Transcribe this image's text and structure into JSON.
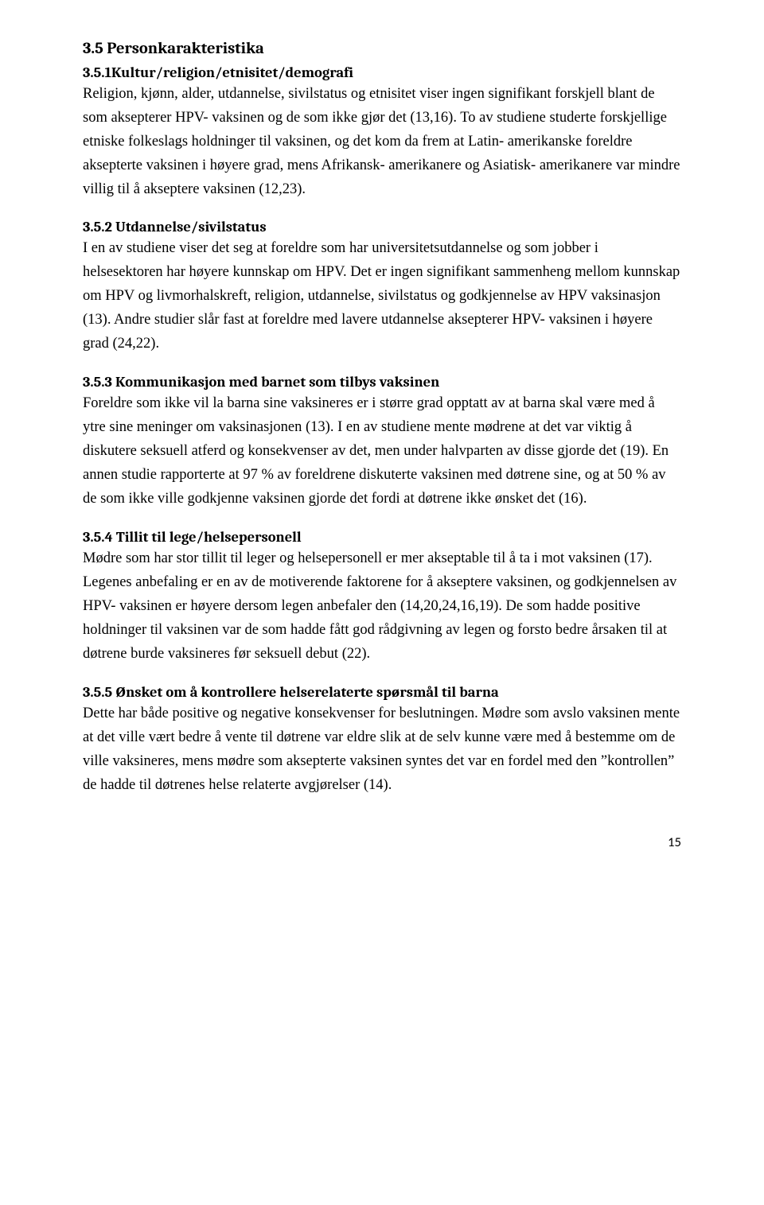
{
  "page": {
    "number": "15"
  },
  "section": {
    "heading": "3.5 Personkarakteristika"
  },
  "subsections": [
    {
      "heading": "3.5.1Kultur/religion/etnisitet/demografi",
      "body": "Religion, kjønn, alder, utdannelse, sivilstatus og etnisitet viser ingen signifikant forskjell blant de som aksepterer HPV- vaksinen og de som ikke gjør det (13,16). To av studiene studerte forskjellige etniske folkeslags holdninger til vaksinen, og det kom da frem at Latin- amerikanske foreldre aksepterte vaksinen i høyere grad, mens Afrikansk- amerikanere og Asiatisk- amerikanere var mindre villig til å akseptere vaksinen (12,23)."
    },
    {
      "heading": "3.5.2 Utdannelse/sivilstatus",
      "body": "I en av studiene viser det seg at foreldre som har universitetsutdannelse og som jobber i helsesektoren har høyere kunnskap om HPV. Det er ingen signifikant sammenheng mellom kunnskap om HPV og livmorhalskreft, religion, utdannelse, sivilstatus og godkjennelse av HPV vaksinasjon (13). Andre studier slår fast at foreldre med lavere utdannelse aksepterer HPV- vaksinen i høyere grad (24,22)."
    },
    {
      "heading": "3.5.3 Kommunikasjon med barnet som tilbys vaksinen",
      "body": "Foreldre som ikke vil la barna sine vaksineres er i større grad opptatt av at barna skal være med å ytre sine meninger om vaksinasjonen (13). I en av studiene mente mødrene at det var viktig å diskutere seksuell atferd og konsekvenser av det, men under halvparten av disse gjorde det (19). En annen studie rapporterte at 97 % av foreldrene diskuterte vaksinen med døtrene sine, og at 50 % av de som ikke ville godkjenne vaksinen gjorde det fordi at døtrene ikke ønsket det (16)."
    },
    {
      "heading": "3.5.4 Tillit til lege/helsepersonell",
      "body": "Mødre som har stor tillit til leger og helsepersonell er mer akseptable til å ta i mot vaksinen (17). Legenes anbefaling er en av de motiverende faktorene for å akseptere vaksinen, og godkjennelsen av HPV- vaksinen er høyere dersom legen anbefaler den (14,20,24,16,19). De som hadde positive holdninger til vaksinen var de som hadde fått god rådgivning av legen og forsto bedre årsaken til at døtrene burde vaksineres før seksuell debut (22)."
    },
    {
      "heading": "3.5.5 Ønsket om å kontrollere helserelaterte spørsmål til barna",
      "body": "Dette har både positive og negative konsekvenser for beslutningen. Mødre som avslo vaksinen mente at det ville vært bedre å vente til døtrene var eldre slik at de selv kunne være med å bestemme om de ville vaksineres, mens mødre som aksepterte vaksinen syntes det var en fordel med den ”kontrollen” de hadde til døtrenes helse relaterte avgjørelser (14)."
    }
  ]
}
